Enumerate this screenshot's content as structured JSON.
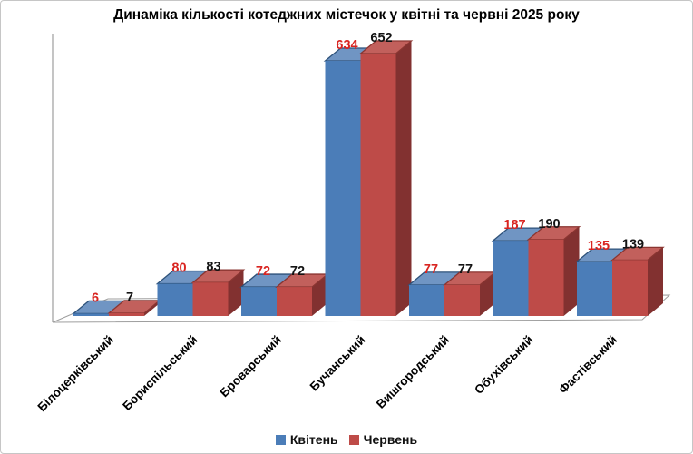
{
  "chart_data": {
    "type": "bar",
    "variant": "3d-clustered-column",
    "title": "Динаміка кількості котеджних містечок у квітні та червні 2025 року",
    "categories": [
      "Білоцерківський",
      "Бориспільський",
      "Броварський",
      "Бучанський",
      "Вишгородський",
      "Обухівський",
      "Фастівський"
    ],
    "series": [
      {
        "name": "Квітень",
        "values": [
          6,
          80,
          72,
          634,
          77,
          187,
          135
        ],
        "color": "#4B7DB8",
        "top_color": "#7095C3",
        "side_color": "#35597F",
        "edge_color": "#2E527A",
        "label_color": "#D92521"
      },
      {
        "name": "Червень",
        "values": [
          7,
          83,
          72,
          652,
          77,
          190,
          139
        ],
        "color": "#BE4B48",
        "top_color": "#C2605C",
        "side_color": "#823130",
        "edge_color": "#8A3531",
        "label_color": "#141414"
      }
    ],
    "data_labels": true,
    "legend_position": "bottom",
    "grid": false,
    "axes": {
      "y_axis_labels_visible": false,
      "x_axis_labels_rotation_deg": -45
    }
  }
}
